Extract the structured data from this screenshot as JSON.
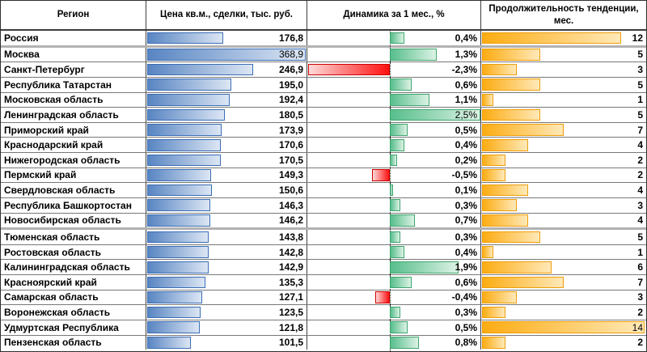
{
  "colors": {
    "price_bar_start": "#5885C2",
    "price_bar_end": "#DCE6F4",
    "price_bar_border": "#3A6DB5",
    "pos_bar_start": "#57BE8C",
    "pos_bar_end": "#DCF2E5",
    "pos_bar_border": "#3FA56E",
    "neg_bar_start": "#FFD9D9",
    "neg_bar_end": "#FF1111",
    "neg_bar_border": "#CC0000",
    "dur_bar_start": "#FCAC12",
    "dur_bar_end": "#FFE9B8",
    "dur_bar_border": "#EE9D0A"
  },
  "table": {
    "columns": [
      {
        "label": "Регион"
      },
      {
        "label": "Цена кв.м., сделки, тыс. руб."
      },
      {
        "label": "Динамика за 1 мес., %"
      },
      {
        "label": "Продолжительность тенденции, мес."
      }
    ],
    "scales": {
      "price_max": 368.9,
      "dyn_min": -2.3,
      "dyn_max": 2.5,
      "dur_max": 14
    },
    "rows": [
      {
        "region": "Россия",
        "price": "176,8",
        "price_val": 176.8,
        "dyn": "0,4%",
        "dyn_val": 0.4,
        "dur": "12",
        "dur_val": 12
      },
      {
        "region": "Москва",
        "price": "368,9",
        "price_val": 368.9,
        "dyn": "1,3%",
        "dyn_val": 1.3,
        "dur": "5",
        "dur_val": 5,
        "thick_top": true,
        "price_plain": true
      },
      {
        "region": "Санкт-Петербург",
        "price": "246,9",
        "price_val": 246.9,
        "dyn": "-2,3%",
        "dyn_val": -2.3,
        "dur": "3",
        "dur_val": 3
      },
      {
        "region": "Республика Татарстан",
        "price": "195,0",
        "price_val": 195.0,
        "dyn": "0,6%",
        "dyn_val": 0.6,
        "dur": "5",
        "dur_val": 5
      },
      {
        "region": "Московская область",
        "price": "192,4",
        "price_val": 192.4,
        "dyn": "1,1%",
        "dyn_val": 1.1,
        "dur": "1",
        "dur_val": 1
      },
      {
        "region": "Ленинградская область",
        "price": "180,5",
        "price_val": 180.5,
        "dyn": "2,5%",
        "dyn_val": 2.5,
        "dur": "5",
        "dur_val": 5,
        "dyn_plain": true
      },
      {
        "region": "Приморский край",
        "price": "173,9",
        "price_val": 173.9,
        "dyn": "0,5%",
        "dyn_val": 0.5,
        "dur": "7",
        "dur_val": 7
      },
      {
        "region": "Краснодарский край",
        "price": "170,6",
        "price_val": 170.6,
        "dyn": "0,4%",
        "dyn_val": 0.4,
        "dur": "4",
        "dur_val": 4
      },
      {
        "region": "Нижегородская область",
        "price": "170,5",
        "price_val": 170.5,
        "dyn": "0,2%",
        "dyn_val": 0.2,
        "dur": "2",
        "dur_val": 2
      },
      {
        "region": "Пермский край",
        "price": "149,3",
        "price_val": 149.3,
        "dyn": "-0,5%",
        "dyn_val": -0.5,
        "dur": "2",
        "dur_val": 2
      },
      {
        "region": "Свердловская область",
        "price": "150,6",
        "price_val": 150.6,
        "dyn": "0,1%",
        "dyn_val": 0.1,
        "dur": "4",
        "dur_val": 4
      },
      {
        "region": "Республика Башкортостан",
        "price": "146,3",
        "price_val": 146.3,
        "dyn": "0,3%",
        "dyn_val": 0.3,
        "dur": "3",
        "dur_val": 3
      },
      {
        "region": "Новосибирская область",
        "price": "146,2",
        "price_val": 146.2,
        "dyn": "0,7%",
        "dyn_val": 0.7,
        "dur": "4",
        "dur_val": 4
      },
      {
        "region": "Тюменская область",
        "price": "143,8",
        "price_val": 143.8,
        "dyn": "0,3%",
        "dyn_val": 0.3,
        "dur": "5",
        "dur_val": 5,
        "thick_top": true
      },
      {
        "region": "Ростовская область",
        "price": "142,8",
        "price_val": 142.8,
        "dyn": "0,4%",
        "dyn_val": 0.4,
        "dur": "1",
        "dur_val": 1
      },
      {
        "region": "Калининградская область",
        "price": "142,9",
        "price_val": 142.9,
        "dyn": "1,9%",
        "dyn_val": 1.9,
        "dur": "6",
        "dur_val": 6
      },
      {
        "region": "Красноярский край",
        "price": "135,3",
        "price_val": 135.3,
        "dyn": "0,6%",
        "dyn_val": 0.6,
        "dur": "7",
        "dur_val": 7
      },
      {
        "region": "Самарская область",
        "price": "127,1",
        "price_val": 127.1,
        "dyn": "-0,4%",
        "dyn_val": -0.4,
        "dur": "3",
        "dur_val": 3
      },
      {
        "region": "Воронежская область",
        "price": "123,5",
        "price_val": 123.5,
        "dyn": "0,3%",
        "dyn_val": 0.3,
        "dur": "2",
        "dur_val": 2
      },
      {
        "region": "Удмуртская Республика",
        "price": "121,8",
        "price_val": 121.8,
        "dyn": "0,5%",
        "dyn_val": 0.5,
        "dur": "14",
        "dur_val": 14,
        "dur_plain": true
      },
      {
        "region": "Пензенская область",
        "price": "101,5",
        "price_val": 101.5,
        "dyn": "0,8%",
        "dyn_val": 0.8,
        "dur": "2",
        "dur_val": 2
      }
    ]
  },
  "chart_data": {
    "type": "table",
    "title": "",
    "categories": [
      "Россия",
      "Москва",
      "Санкт-Петербург",
      "Республика Татарстан",
      "Московская область",
      "Ленинградская область",
      "Приморский край",
      "Краснодарский край",
      "Нижегородская область",
      "Пермский край",
      "Свердловская область",
      "Республика Башкортостан",
      "Новосибирская область",
      "Тюменская область",
      "Ростовская область",
      "Калининградская область",
      "Красноярский край",
      "Самарская область",
      "Воронежская область",
      "Удмуртская Республика",
      "Пензенская область"
    ],
    "series": [
      {
        "name": "Цена кв.м., сделки, тыс. руб.",
        "values": [
          176.8,
          368.9,
          246.9,
          195.0,
          192.4,
          180.5,
          173.9,
          170.6,
          170.5,
          149.3,
          150.6,
          146.3,
          146.2,
          143.8,
          142.8,
          142.9,
          135.3,
          127.1,
          123.5,
          121.8,
          101.5
        ]
      },
      {
        "name": "Динамика за 1 мес., %",
        "values": [
          0.4,
          1.3,
          -2.3,
          0.6,
          1.1,
          2.5,
          0.5,
          0.4,
          0.2,
          -0.5,
          0.1,
          0.3,
          0.7,
          0.3,
          0.4,
          1.9,
          0.6,
          -0.4,
          0.3,
          0.5,
          0.8
        ]
      },
      {
        "name": "Продолжительность тенденции, мес.",
        "values": [
          12,
          5,
          3,
          5,
          1,
          5,
          7,
          4,
          2,
          2,
          4,
          3,
          4,
          5,
          1,
          6,
          7,
          3,
          2,
          14,
          2
        ]
      }
    ],
    "layout": {
      "bar_axis_dynamics": "diverging at 0, negatives red left, positives green right",
      "price_bars": "blue, zero-based",
      "duration_bars": "orange, zero-based"
    }
  }
}
